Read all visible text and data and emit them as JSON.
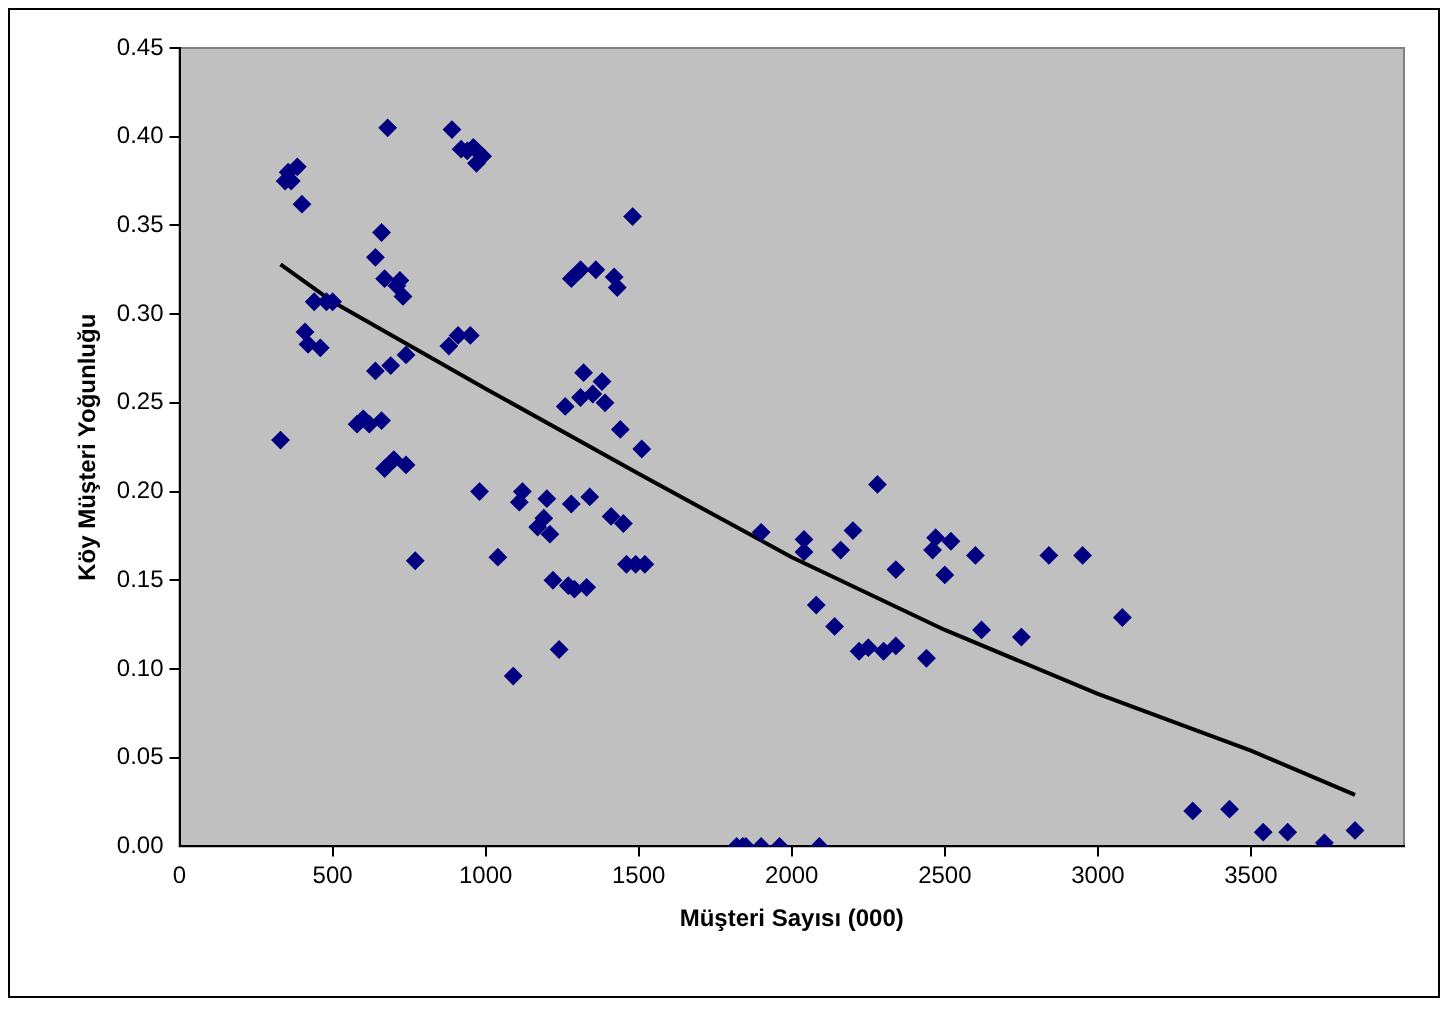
{
  "chart_data": {
    "type": "scatter",
    "xlabel": "Müşteri Sayısı (000)",
    "ylabel": "Köy Müşteri Yoğunluğu",
    "xlim": [
      0,
      4000
    ],
    "xticks": [
      0,
      500,
      1000,
      1500,
      2000,
      2500,
      3000,
      3500
    ],
    "ylim": [
      0,
      0.45
    ],
    "yticks": [
      {
        "value": 0,
        "label": "0.00"
      },
      0.05,
      {
        "value": 0.1,
        "label": "0.10"
      },
      0.15,
      {
        "value": 0.2,
        "label": "0.20"
      },
      0.25,
      {
        "value": 0.3,
        "label": "0.30"
      },
      0.35,
      {
        "value": 0.4,
        "label": "0.40"
      },
      0.45
    ],
    "grid": false,
    "legend": false,
    "marker": "diamond",
    "series": [
      {
        "color": "#000080",
        "x": [
          330,
          345,
          355,
          365,
          385,
          400,
          410,
          420,
          440,
          460,
          480,
          500,
          580,
          600,
          620,
          640,
          640,
          660,
          660,
          670,
          670,
          680,
          690,
          700,
          710,
          720,
          730,
          740,
          740,
          770,
          880,
          890,
          910,
          920,
          940,
          950,
          960,
          970,
          990,
          980,
          1040,
          1090,
          1110,
          1120,
          1170,
          1190,
          1200,
          1210,
          1220,
          1240,
          1260,
          1270,
          1280,
          1280,
          1290,
          1310,
          1310,
          1320,
          1330,
          1340,
          1350,
          1360,
          1380,
          1390,
          1410,
          1420,
          1430,
          1440,
          1450,
          1460,
          1480,
          1490,
          1510,
          1520,
          1820,
          1840,
          1850,
          1900,
          1960,
          2090,
          1900,
          2040,
          2040,
          2080,
          2140,
          2160,
          2200,
          2220,
          2250,
          2280,
          2300,
          2340,
          2340,
          2440,
          2460,
          2470,
          2500,
          2520,
          2600,
          2620,
          2750,
          2840,
          2950,
          3080,
          3310,
          3430,
          3540,
          3620,
          3740,
          3840
        ],
        "values": [
          0.229,
          0.375,
          0.38,
          0.375,
          0.383,
          0.362,
          0.29,
          0.283,
          0.307,
          0.281,
          0.307,
          0.307,
          0.238,
          0.241,
          0.238,
          0.332,
          0.268,
          0.346,
          0.24,
          0.32,
          0.213,
          0.405,
          0.271,
          0.218,
          0.316,
          0.319,
          0.31,
          0.277,
          0.215,
          0.161,
          0.282,
          0.404,
          0.288,
          0.393,
          0.392,
          0.288,
          0.394,
          0.385,
          0.389,
          0.2,
          0.163,
          0.096,
          0.194,
          0.2,
          0.18,
          0.185,
          0.196,
          0.176,
          0.15,
          0.111,
          0.248,
          0.147,
          0.32,
          0.193,
          0.145,
          0.325,
          0.253,
          0.267,
          0.146,
          0.197,
          0.255,
          0.325,
          0.262,
          0.25,
          0.186,
          0.321,
          0.315,
          0.235,
          0.182,
          0.159,
          0.355,
          0.159,
          0.224,
          0.159,
          0,
          0,
          0,
          0,
          0,
          0,
          0.177,
          0.173,
          0.166,
          0.136,
          0.124,
          0.167,
          0.178,
          0.11,
          0.112,
          0.204,
          0.11,
          0.156,
          0.113,
          0.106,
          0.167,
          0.174,
          0.153,
          0.172,
          0.164,
          0.122,
          0.118,
          0.164,
          0.164,
          0.129,
          0.02,
          0.021,
          0.008,
          0.008,
          0.002,
          0.009
        ]
      },
      {
        "type": "line",
        "color": "#000000",
        "marker": "none",
        "line_style": "solid",
        "x": [
          330,
          500,
          1000,
          1500,
          2000,
          2500,
          3000,
          3500,
          3840
        ],
        "values": [
          0.328,
          0.307,
          0.258,
          0.21,
          0.163,
          0.122,
          0.086,
          0.054,
          0.029
        ]
      }
    ]
  }
}
